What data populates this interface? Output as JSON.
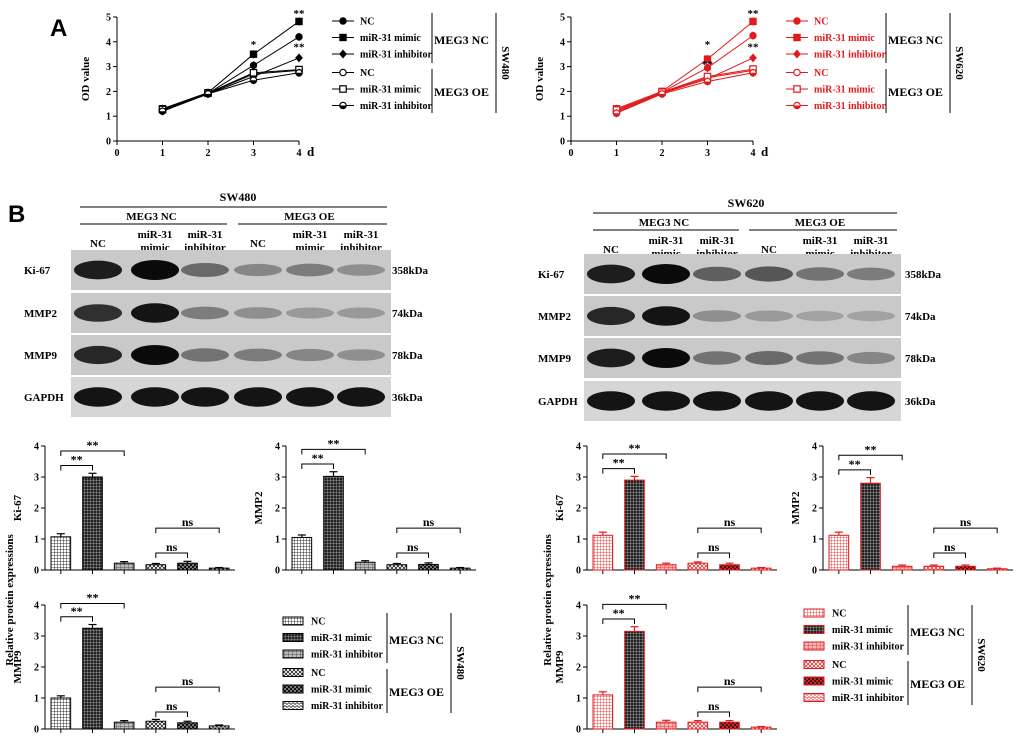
{
  "panel_labels": {
    "a": "A",
    "b": "B"
  },
  "cell_lines": {
    "sw480": "SW480",
    "sw620": "SW620"
  },
  "groups": {
    "meg3nc": "MEG3 NC",
    "meg3oe": "MEG3 OE"
  },
  "legend_items": [
    "NC",
    "miR-31 mimic",
    "miR-31 inhibitor",
    "NC",
    "miR-31 mimic",
    "miR-31 inhibitor"
  ],
  "lane_labels": [
    [
      "NC"
    ],
    [
      "miR-31",
      "mimic"
    ],
    [
      "miR-31",
      "inhibitor"
    ],
    [
      "NC"
    ],
    [
      "miR-31",
      "mimic"
    ],
    [
      "miR-31",
      "inhibitor"
    ]
  ],
  "blot_bands": [
    {
      "protein": "Ki-67",
      "size": "358kDa"
    },
    {
      "protein": "MMP2",
      "size": "74kDa"
    },
    {
      "protein": "MMP9",
      "size": "78kDa"
    },
    {
      "protein": "GAPDH",
      "size": "36kDa"
    }
  ],
  "shared_ylabel": "Relative protein expressions",
  "sig_labels": {
    "double": "**",
    "single": "*",
    "ns": "ns"
  },
  "colors": {
    "sw480": "#000000",
    "sw620": "#e31a1c"
  },
  "chart_data": [
    {
      "id": "od-sw480",
      "type": "line",
      "ylabel": "OD value",
      "xunit": "d",
      "x": [
        1,
        2,
        3,
        4
      ],
      "xlim": [
        0,
        4
      ],
      "ylim": [
        0,
        5
      ],
      "xticks": [
        "0",
        "1",
        "2",
        "3",
        "4"
      ],
      "yticks": [
        "0",
        "1",
        "2",
        "3",
        "4",
        "5"
      ],
      "series": [
        {
          "name": "NC",
          "group": "MEG3 NC",
          "values": [
            1.28,
            1.92,
            3.05,
            4.2
          ]
        },
        {
          "name": "miR-31 mimic",
          "group": "MEG3 NC",
          "values": [
            1.3,
            1.95,
            3.5,
            4.82
          ]
        },
        {
          "name": "miR-31 inhibitor",
          "group": "MEG3 NC",
          "values": [
            1.22,
            1.9,
            2.6,
            3.35
          ]
        },
        {
          "name": "NC",
          "group": "MEG3 OE",
          "values": [
            1.25,
            1.92,
            2.7,
            2.85
          ]
        },
        {
          "name": "miR-31 mimic",
          "group": "MEG3 OE",
          "values": [
            1.27,
            1.93,
            2.75,
            2.88
          ]
        },
        {
          "name": "miR-31 inhibitor",
          "group": "MEG3 OE",
          "values": [
            1.2,
            1.9,
            2.45,
            2.75
          ]
        }
      ],
      "annotations": [
        {
          "x": 3,
          "text": "*"
        },
        {
          "x": 4,
          "text": "**"
        },
        {
          "x": 4,
          "text": "**"
        }
      ]
    },
    {
      "id": "od-sw620",
      "type": "line",
      "ylabel": "OD value",
      "xunit": "d",
      "x": [
        1,
        2,
        3,
        4
      ],
      "xlim": [
        0,
        4
      ],
      "ylim": [
        0,
        5
      ],
      "xticks": [
        "0",
        "1",
        "2",
        "3",
        "4"
      ],
      "yticks": [
        "0",
        "1",
        "2",
        "3",
        "4",
        "5"
      ],
      "series": [
        {
          "name": "NC",
          "group": "MEG3 NC",
          "values": [
            1.22,
            1.97,
            2.95,
            4.25
          ]
        },
        {
          "name": "miR-31 mimic",
          "group": "MEG3 NC",
          "values": [
            1.3,
            2.0,
            3.3,
            4.82
          ]
        },
        {
          "name": "miR-31 inhibitor",
          "group": "MEG3 NC",
          "values": [
            1.15,
            1.93,
            2.5,
            3.35
          ]
        },
        {
          "name": "NC",
          "group": "MEG3 OE",
          "values": [
            1.2,
            1.95,
            2.55,
            2.85
          ]
        },
        {
          "name": "miR-31 mimic",
          "group": "MEG3 OE",
          "values": [
            1.25,
            1.97,
            2.6,
            2.9
          ]
        },
        {
          "name": "miR-31 inhibitor",
          "group": "MEG3 OE",
          "values": [
            1.12,
            1.9,
            2.4,
            2.75
          ]
        }
      ],
      "annotations": [
        {
          "x": 3,
          "text": "*"
        },
        {
          "x": 3,
          "text": "**"
        },
        {
          "x": 4,
          "text": "**"
        },
        {
          "x": 4,
          "text": "**"
        }
      ]
    },
    {
      "id": "ki67-sw480",
      "type": "bar",
      "ylabel": "Ki-67",
      "ylim": [
        0,
        4
      ],
      "yticks": [
        "0",
        "1",
        "2",
        "3",
        "4"
      ],
      "values": [
        1.07,
        3.0,
        0.22,
        0.17,
        0.22,
        0.06
      ],
      "errors": [
        0.1,
        0.12,
        0.05,
        0.04,
        0.06,
        0.02
      ]
    },
    {
      "id": "mmp2-sw480",
      "type": "bar",
      "ylabel": "MMP2",
      "ylim": [
        0,
        4
      ],
      "yticks": [
        "0",
        "1",
        "2",
        "3",
        "4"
      ],
      "values": [
        1.05,
        3.02,
        0.25,
        0.17,
        0.18,
        0.06
      ],
      "errors": [
        0.08,
        0.15,
        0.05,
        0.04,
        0.05,
        0.02
      ]
    },
    {
      "id": "mmp9-sw480",
      "type": "bar",
      "ylabel": "MMP9",
      "ylim": [
        0,
        4
      ],
      "yticks": [
        "0",
        "1",
        "2",
        "3",
        "4"
      ],
      "values": [
        1.0,
        3.25,
        0.22,
        0.25,
        0.2,
        0.1
      ],
      "errors": [
        0.07,
        0.12,
        0.05,
        0.06,
        0.05,
        0.03
      ]
    },
    {
      "id": "ki67-sw620",
      "type": "bar",
      "ylabel": "Ki-67",
      "ylim": [
        0,
        4
      ],
      "yticks": [
        "0",
        "1",
        "2",
        "3",
        "4"
      ],
      "values": [
        1.12,
        2.9,
        0.17,
        0.22,
        0.17,
        0.06
      ],
      "errors": [
        0.1,
        0.12,
        0.05,
        0.04,
        0.05,
        0.02
      ]
    },
    {
      "id": "mmp2-sw620",
      "type": "bar",
      "ylabel": "MMP2",
      "ylim": [
        0,
        4
      ],
      "yticks": [
        "0",
        "1",
        "2",
        "3",
        "4"
      ],
      "values": [
        1.12,
        2.8,
        0.12,
        0.12,
        0.12,
        0.04
      ],
      "errors": [
        0.1,
        0.18,
        0.04,
        0.04,
        0.04,
        0.02
      ]
    },
    {
      "id": "mmp9-sw620",
      "type": "bar",
      "ylabel": "MMP9",
      "ylim": [
        0,
        4
      ],
      "yticks": [
        "0",
        "1",
        "2",
        "3",
        "4"
      ],
      "values": [
        1.1,
        3.15,
        0.22,
        0.22,
        0.22,
        0.06
      ],
      "errors": [
        0.1,
        0.15,
        0.06,
        0.05,
        0.05,
        0.02
      ]
    }
  ]
}
